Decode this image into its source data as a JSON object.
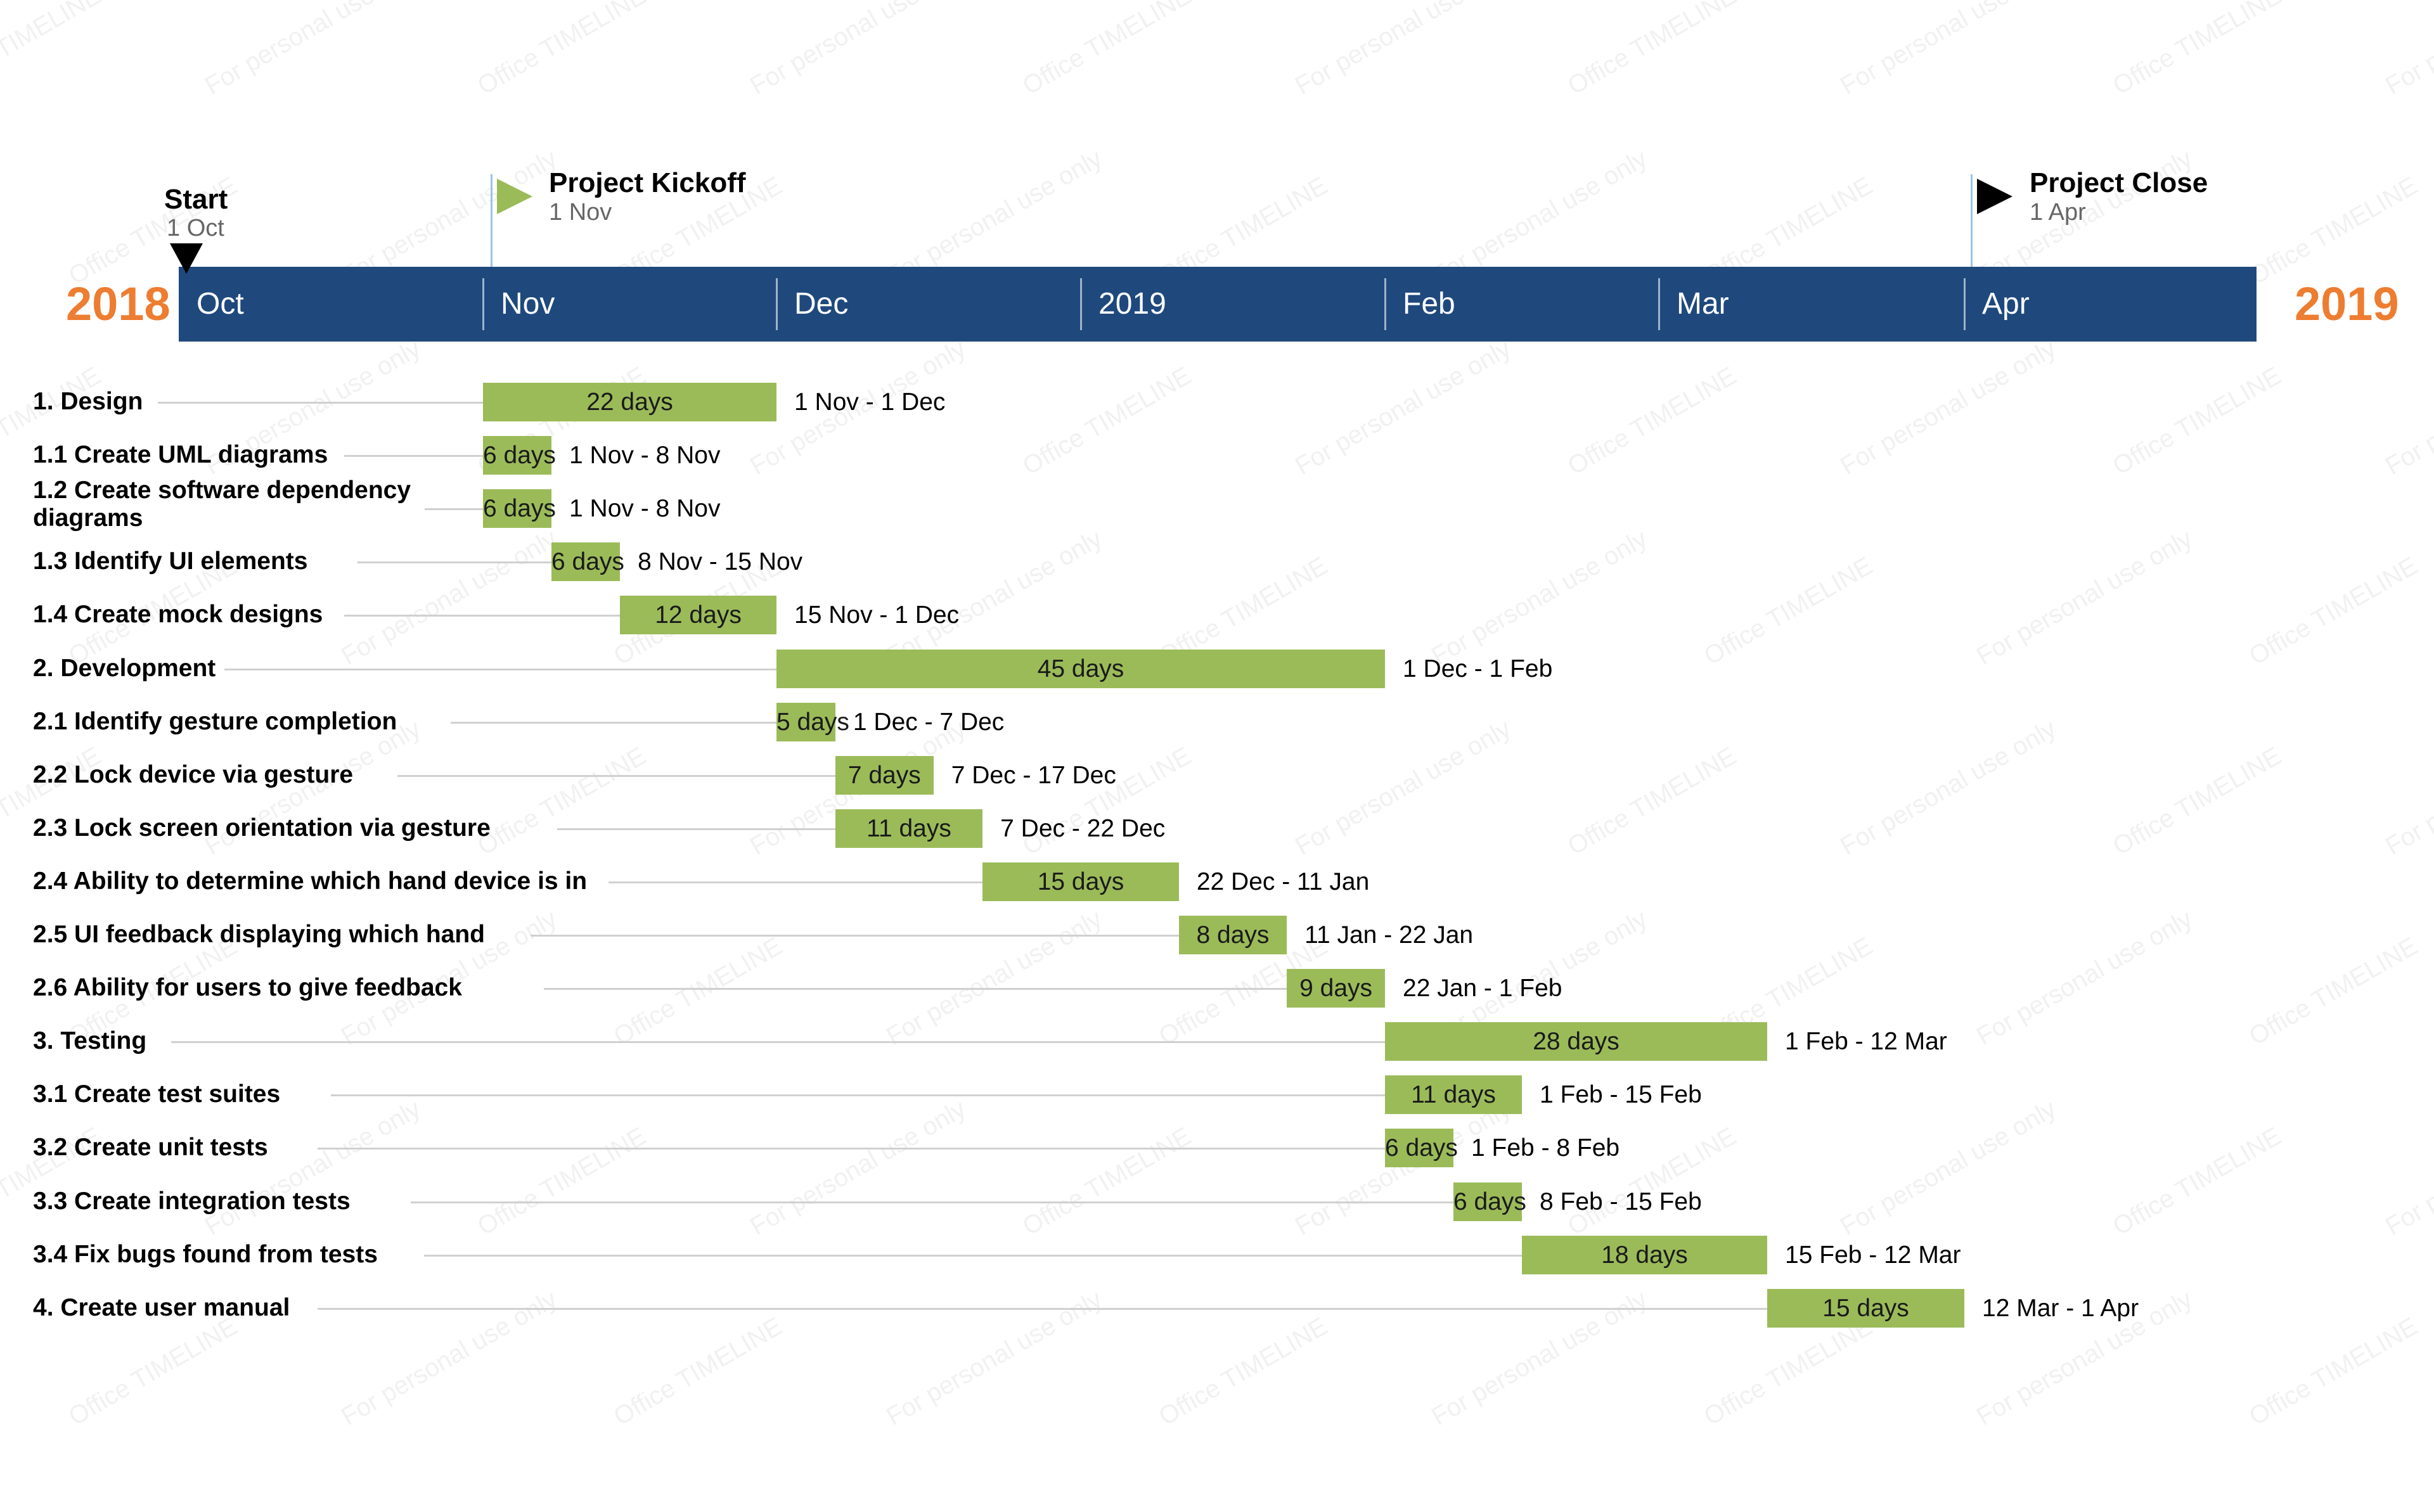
{
  "watermark": {
    "texts": [
      "Office TIMELINE",
      "For personal use only"
    ],
    "color": "#f1f1f1"
  },
  "years": {
    "left": "2018",
    "right": "2019",
    "color": "#ed7d31"
  },
  "band_color": "#1f497d",
  "bar_color": "#9bbb59",
  "milestones": [
    {
      "title": "Start",
      "date": "1 Oct",
      "icon": "black-triangle-down-icon"
    },
    {
      "title": "Project Kickoff",
      "date": "1 Nov",
      "icon": "green-flag-icon"
    },
    {
      "title": "Project Close",
      "date": "1 Apr",
      "icon": "black-flag-icon"
    }
  ],
  "chart_data": {
    "type": "gantt",
    "title": "",
    "timeline_start": "2018-10-01",
    "timeline_end": "2019-04-15",
    "months": [
      {
        "label": "Oct",
        "start": "2018-10-01"
      },
      {
        "label": "Nov",
        "start": "2018-11-01"
      },
      {
        "label": "Dec",
        "start": "2018-12-01"
      },
      {
        "label": "2019",
        "start": "2019-01-01"
      },
      {
        "label": "Feb",
        "start": "2019-02-01"
      },
      {
        "label": "Mar",
        "start": "2019-03-01"
      },
      {
        "label": "Apr",
        "start": "2019-04-01"
      }
    ],
    "milestone_dates": [
      "2018-10-01",
      "2018-11-01",
      "2019-04-01"
    ],
    "tasks": [
      {
        "name": "1. Design",
        "start": "2018-11-01",
        "end": "2018-12-01",
        "duration": "22 days",
        "range": "1 Nov - 1 Dec"
      },
      {
        "name": "1.1 Create UML diagrams",
        "start": "2018-11-01",
        "end": "2018-11-08",
        "duration": "6 days",
        "range": "1 Nov - 8 Nov"
      },
      {
        "name": "1.2 Create software dependency diagrams",
        "start": "2018-11-01",
        "end": "2018-11-08",
        "duration": "6 days",
        "range": "1 Nov - 8 Nov"
      },
      {
        "name": "1.3 Identify UI elements",
        "start": "2018-11-08",
        "end": "2018-11-15",
        "duration": "6 days",
        "range": "8 Nov - 15 Nov"
      },
      {
        "name": "1.4 Create mock designs",
        "start": "2018-11-15",
        "end": "2018-12-01",
        "duration": "12 days",
        "range": "15 Nov - 1 Dec"
      },
      {
        "name": "2. Development",
        "start": "2018-12-01",
        "end": "2019-02-01",
        "duration": "45 days",
        "range": "1 Dec - 1 Feb"
      },
      {
        "name": "2.1 Identify gesture completion",
        "start": "2018-12-01",
        "end": "2018-12-07",
        "duration": "5 days",
        "range": "1 Dec - 7 Dec"
      },
      {
        "name": "2.2 Lock device via gesture",
        "start": "2018-12-07",
        "end": "2018-12-17",
        "duration": "7 days",
        "range": "7 Dec - 17 Dec"
      },
      {
        "name": "2.3 Lock screen orientation via gesture",
        "start": "2018-12-07",
        "end": "2018-12-22",
        "duration": "11 days",
        "range": "7 Dec - 22 Dec"
      },
      {
        "name": "2.4 Ability to determine which hand device is in",
        "start": "2018-12-22",
        "end": "2019-01-11",
        "duration": "15 days",
        "range": "22 Dec - 11 Jan"
      },
      {
        "name": "2.5 UI feedback displaying which hand",
        "start": "2019-01-11",
        "end": "2019-01-22",
        "duration": "8 days",
        "range": "11 Jan - 22 Jan"
      },
      {
        "name": "2.6 Ability for users to give feedback",
        "start": "2019-01-22",
        "end": "2019-02-01",
        "duration": "9 days",
        "range": "22 Jan - 1 Feb"
      },
      {
        "name": "3. Testing",
        "start": "2019-02-01",
        "end": "2019-03-12",
        "duration": "28 days",
        "range": "1 Feb - 12 Mar"
      },
      {
        "name": "3.1 Create test suites",
        "start": "2019-02-01",
        "end": "2019-02-15",
        "duration": "11 days",
        "range": "1 Feb - 15 Feb"
      },
      {
        "name": "3.2 Create unit tests",
        "start": "2019-02-01",
        "end": "2019-02-08",
        "duration": "6 days",
        "range": "1 Feb - 8 Feb"
      },
      {
        "name": "3.3 Create integration tests",
        "start": "2019-02-08",
        "end": "2019-02-15",
        "duration": "6 days",
        "range": "8 Feb - 15 Feb"
      },
      {
        "name": "3.4 Fix bugs found from tests",
        "start": "2019-02-15",
        "end": "2019-03-12",
        "duration": "18 days",
        "range": "15 Feb - 12 Mar"
      },
      {
        "name": "4. Create user manual",
        "start": "2019-03-12",
        "end": "2019-04-01",
        "duration": "15 days",
        "range": "12 Mar - 1 Apr"
      }
    ]
  }
}
